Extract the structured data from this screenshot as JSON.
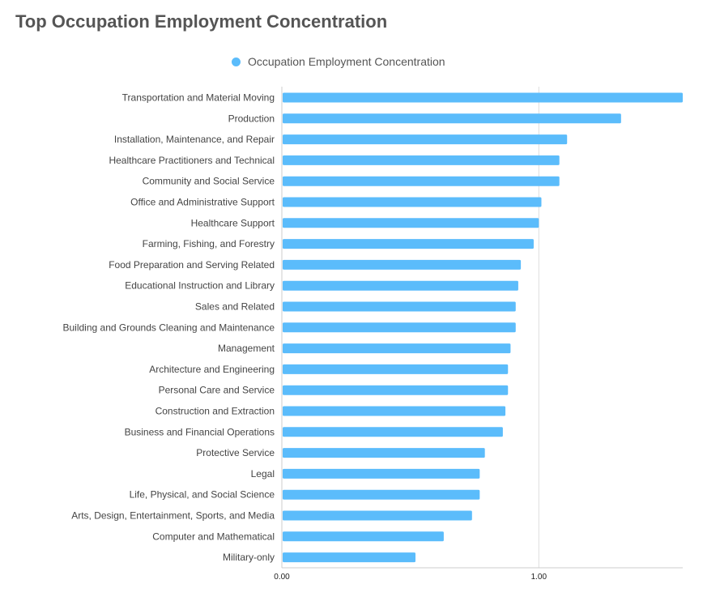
{
  "page": {
    "title": "Top Occupation Employment Concentration"
  },
  "colors": {
    "bar": "#5bbcfb",
    "grid": "#dddddd",
    "axis": "#cccccc",
    "title": "#555555"
  },
  "chart_data": {
    "type": "bar",
    "orientation": "horizontal",
    "title": "Top Occupation Employment Concentration",
    "legend": {
      "position": "top-center",
      "entries": [
        "Occupation Employment Concentration"
      ]
    },
    "grid": true,
    "xlim": [
      0,
      1.56
    ],
    "xticks": [
      0,
      1
    ],
    "xtick_labels": [
      "0.00",
      "1.00"
    ],
    "categories": [
      "Transportation and Material Moving",
      "Production",
      "Installation, Maintenance, and Repair",
      "Healthcare Practitioners and Technical",
      "Community and Social Service",
      "Office and Administrative Support",
      "Healthcare Support",
      "Farming, Fishing, and Forestry",
      "Food Preparation and Serving Related",
      "Educational Instruction and Library",
      "Sales and Related",
      "Building and Grounds Cleaning and Maintenance",
      "Management",
      "Architecture and Engineering",
      "Personal Care and Service",
      "Construction and Extraction",
      "Business and Financial Operations",
      "Protective Service",
      "Legal",
      "Life, Physical, and Social Science",
      "Arts, Design, Entertainment, Sports, and Media",
      "Computer and Mathematical",
      "Military-only"
    ],
    "series": [
      {
        "name": "Occupation Employment Concentration",
        "values": [
          1.56,
          1.32,
          1.11,
          1.08,
          1.08,
          1.01,
          1.0,
          0.98,
          0.93,
          0.92,
          0.91,
          0.91,
          0.89,
          0.88,
          0.88,
          0.87,
          0.86,
          0.79,
          0.77,
          0.77,
          0.74,
          0.63,
          0.52
        ]
      }
    ]
  }
}
